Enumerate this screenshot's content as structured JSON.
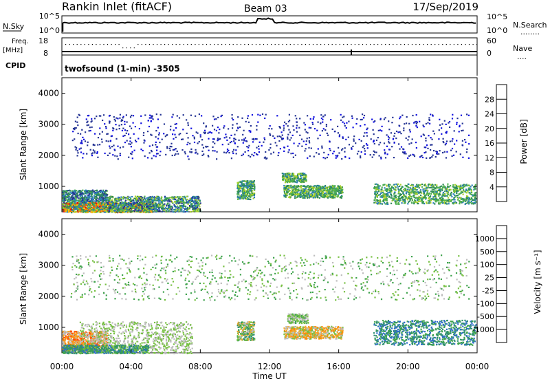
{
  "header": {
    "site": "Rankin Inlet (fitACF)",
    "beam": "Beam 03",
    "date": "17/Sep/2019"
  },
  "top_panel": {
    "left_label": "N.Sky",
    "left_ticks": [
      "10^5",
      "10^0"
    ],
    "right_ticks": [
      "10^5",
      "10^0"
    ],
    "right_label": "N.Search",
    "right_label_legend": "........"
  },
  "freq_panel": {
    "label_line1": "Freq.",
    "label_line2": "[MHz]",
    "left_ticks": [
      "18",
      "8"
    ],
    "right_ticks": [
      "60",
      "0"
    ],
    "right_label": "Nave",
    "right_label_legend": "....",
    "cpid_label": "CPID",
    "cpid_text": "twofsound (1-min) -3505"
  },
  "time_axis": {
    "ticks": [
      "00:00",
      "04:00",
      "08:00",
      "12:00",
      "16:00",
      "20:00",
      "00:00"
    ],
    "label": "Time UT"
  },
  "chart_data": [
    {
      "type": "heatmap",
      "name": "power",
      "ylabel": "Slant Range [km]",
      "ylim": [
        180,
        4500
      ],
      "yticks": [
        1000,
        2000,
        3000,
        4000
      ],
      "xlim_hours": [
        0,
        24
      ],
      "colorbar": {
        "label": "Power [dB]",
        "ticks": [
          "28",
          "24",
          "20",
          "16",
          "12",
          "8",
          "4"
        ],
        "colors": [
          "#e8000b",
          "#ff5a00",
          "#ff9a00",
          "#f2c400",
          "#a9d02a",
          "#4fb04f",
          "#2e8b57",
          "#2c7fb8",
          "#253494",
          "#1010e0"
        ]
      },
      "regions": [
        {
          "t": [
            0.0,
            2.6
          ],
          "r": [
            250,
            900
          ],
          "levels": [
            0.1,
            0.45
          ]
        },
        {
          "t": [
            0.0,
            5.2
          ],
          "r": [
            180,
            500
          ],
          "levels": [
            0.2,
            0.95
          ]
        },
        {
          "t": [
            2.6,
            8.0
          ],
          "r": [
            200,
            700
          ],
          "levels": [
            0.1,
            0.6
          ]
        },
        {
          "t": [
            10.1,
            11.1
          ],
          "r": [
            600,
            1200
          ],
          "levels": [
            0.2,
            0.55
          ]
        },
        {
          "t": [
            12.7,
            14.1
          ],
          "r": [
            1150,
            1450
          ],
          "levels": [
            0.25,
            0.6
          ]
        },
        {
          "t": [
            12.8,
            16.2
          ],
          "r": [
            650,
            1050
          ],
          "levels": [
            0.25,
            0.6
          ]
        },
        {
          "t": [
            18.0,
            23.9
          ],
          "r": [
            450,
            1100
          ],
          "levels": [
            0.25,
            0.55
          ]
        },
        {
          "t": [
            0.5,
            23.5
          ],
          "r": [
            1900,
            3350
          ],
          "levels": [
            0.05,
            0.2
          ]
        }
      ]
    },
    {
      "type": "heatmap",
      "name": "velocity",
      "ylabel": "Slant Range [km]",
      "ylim": [
        180,
        4500
      ],
      "yticks": [
        1000,
        2000,
        3000,
        4000
      ],
      "xlim_hours": [
        0,
        24
      ],
      "colorbar": {
        "label": "Velocity [m s⁻¹]",
        "ticks": [
          "1000",
          "500",
          "100",
          "25",
          "-25",
          "-100",
          "-500",
          "-1000"
        ],
        "colors": [
          "#1a3fb5",
          "#2f6fc9",
          "#2f8f73",
          "#3fa34d",
          "#77c043",
          "#bdbdbd",
          "#f0a830",
          "#ff8c00",
          "#ff5000",
          "#e00000"
        ]
      },
      "regions": [
        {
          "t": [
            0.0,
            2.6
          ],
          "r": [
            250,
            900
          ],
          "levels": [
            0.1,
            0.5
          ]
        },
        {
          "t": [
            1.0,
            7.5
          ],
          "r": [
            180,
            1200
          ],
          "levels": [
            0.4,
            0.6
          ]
        },
        {
          "t": [
            0.0,
            5.0
          ],
          "r": [
            180,
            450
          ],
          "levels": [
            0.55,
            0.85
          ]
        },
        {
          "t": [
            10.1,
            11.1
          ],
          "r": [
            600,
            1200
          ],
          "levels": [
            0.3,
            0.8
          ]
        },
        {
          "t": [
            13.0,
            14.2
          ],
          "r": [
            1150,
            1450
          ],
          "levels": [
            0.45,
            0.65
          ]
        },
        {
          "t": [
            12.8,
            16.2
          ],
          "r": [
            650,
            1050
          ],
          "levels": [
            0.2,
            0.6
          ]
        },
        {
          "t": [
            18.0,
            23.9
          ],
          "r": [
            450,
            1250
          ],
          "levels": [
            0.6,
            0.9
          ]
        },
        {
          "t": [
            0.5,
            23.5
          ],
          "r": [
            1900,
            3350
          ],
          "levels": [
            0.4,
            0.7
          ]
        }
      ]
    }
  ]
}
